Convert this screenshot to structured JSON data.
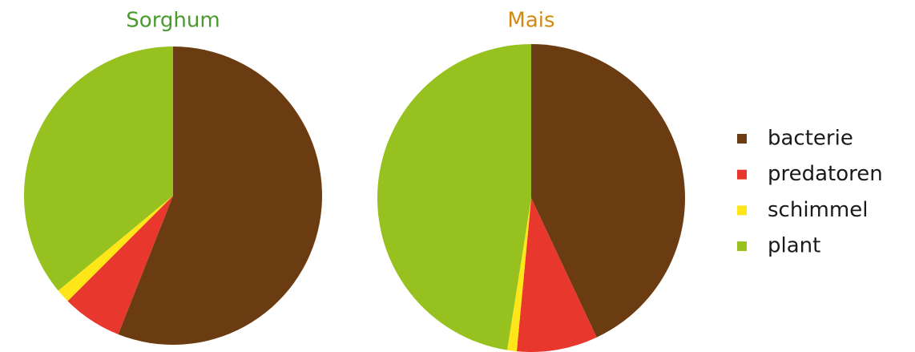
{
  "chart_data": [
    {
      "type": "pie",
      "title": "Sorghum",
      "title_color": "#4a9a2e",
      "categories": [
        "bacterie",
        "predatoren",
        "schimmel",
        "plant"
      ],
      "colors": [
        "#6b3c12",
        "#e8372c",
        "#ffe619",
        "#97c11f"
      ],
      "values": [
        56,
        6.5,
        1.5,
        36
      ]
    },
    {
      "type": "pie",
      "title": "Mais",
      "title_color": "#d08a10",
      "values": [
        43,
        8.5,
        1,
        47.5
      ]
    }
  ]
}
